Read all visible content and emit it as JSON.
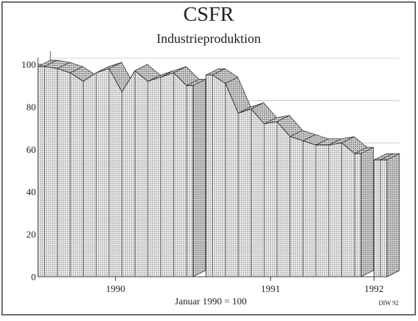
{
  "chart_data": {
    "type": "area3d",
    "title": "CSFR",
    "subtitle": "Industrieproduktion",
    "x_note": "Januar 1990 = 100",
    "source": "DIW 92",
    "categories": [
      null,
      null,
      null,
      null,
      null,
      null,
      "1990",
      null,
      null,
      null,
      null,
      null,
      null,
      null,
      null,
      null,
      null,
      null,
      "1991",
      null,
      null,
      null,
      null,
      null,
      null,
      null,
      "1992"
    ],
    "values": [
      99,
      98,
      96,
      92,
      96,
      98,
      87,
      97,
      92,
      94,
      96,
      90,
      null,
      95,
      91,
      77,
      79,
      72,
      73,
      66,
      64,
      62,
      62,
      63,
      58,
      null,
      55
    ],
    "ylim": [
      0,
      100
    ],
    "yticks": [
      0,
      20,
      40,
      60,
      80,
      100
    ],
    "grid": true,
    "color": "#cfcfcf"
  }
}
